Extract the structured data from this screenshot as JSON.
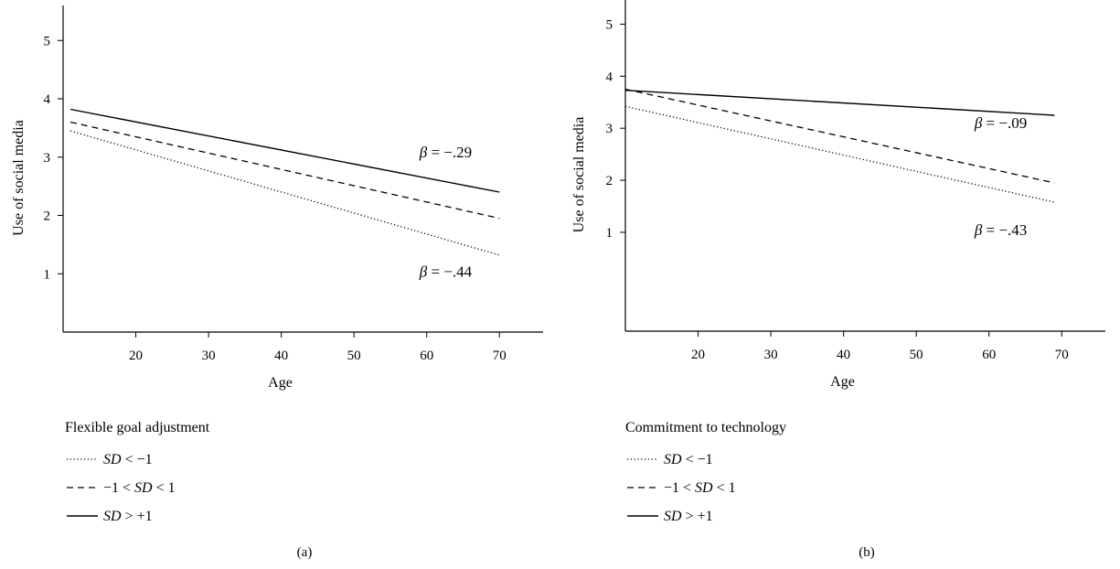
{
  "chart_data": [
    {
      "type": "line",
      "panel_label": "(a)",
      "xlabel": "Age",
      "ylabel": "Use of social media",
      "xlim": [
        10,
        76
      ],
      "ylim": [
        0,
        5.6
      ],
      "xticks": [
        20,
        30,
        40,
        50,
        60,
        70
      ],
      "yticks": [
        1,
        2,
        3,
        4,
        5
      ],
      "grid": false,
      "legend_title": "Flexible goal adjustment",
      "legend_position": "bottom-left",
      "series": [
        {
          "name": "SD < −1",
          "name_parts": [
            "SD",
            " < −1"
          ],
          "style": "dotted",
          "x": [
            11,
            70
          ],
          "y": [
            3.45,
            1.32
          ]
        },
        {
          "name": "−1 < SD < 1",
          "name_parts": [
            "−1 < ",
            "SD",
            " < 1"
          ],
          "style": "dashed",
          "x": [
            11,
            70
          ],
          "y": [
            3.6,
            1.95
          ]
        },
        {
          "name": "SD > +1",
          "name_parts": [
            "SD",
            " > +1"
          ],
          "style": "solid",
          "x": [
            11,
            70
          ],
          "y": [
            3.82,
            2.4
          ]
        }
      ],
      "annotations": [
        {
          "text": "β = −.29",
          "symbol": "β",
          "rest": " = −.29",
          "x": 59,
          "y": 3.0
        },
        {
          "text": "β = −.44",
          "symbol": "β",
          "rest": " = −.44",
          "x": 59,
          "y": 0.95
        }
      ]
    },
    {
      "type": "line",
      "panel_label": "(b)",
      "xlabel": "Age",
      "ylabel": "Use of social media",
      "xlim": [
        10,
        76
      ],
      "ylim": [
        -0.9,
        5.5
      ],
      "xticks": [
        20,
        30,
        40,
        50,
        60,
        70
      ],
      "yticks": [
        1,
        2,
        3,
        4,
        5
      ],
      "grid": false,
      "legend_title": "Commitment to technology",
      "legend_position": "bottom-left",
      "series": [
        {
          "name": "SD < −1",
          "name_parts": [
            "SD",
            " < −1"
          ],
          "style": "dotted",
          "x": [
            10,
            69
          ],
          "y": [
            3.42,
            1.58
          ]
        },
        {
          "name": "−1 < SD < 1",
          "name_parts": [
            "−1 < ",
            "SD",
            " < 1"
          ],
          "style": "dashed",
          "x": [
            10,
            69
          ],
          "y": [
            3.75,
            1.95
          ]
        },
        {
          "name": "SD > +1",
          "name_parts": [
            "SD",
            " > +1"
          ],
          "style": "solid",
          "x": [
            10,
            69
          ],
          "y": [
            3.73,
            3.25
          ]
        }
      ],
      "annotations": [
        {
          "text": "β = −.09",
          "symbol": "β",
          "rest": " = −.09",
          "x": 58,
          "y": 3.0
        },
        {
          "text": "β = −.43",
          "symbol": "β",
          "rest": " = −.43",
          "x": 58,
          "y": 0.95
        }
      ]
    }
  ]
}
